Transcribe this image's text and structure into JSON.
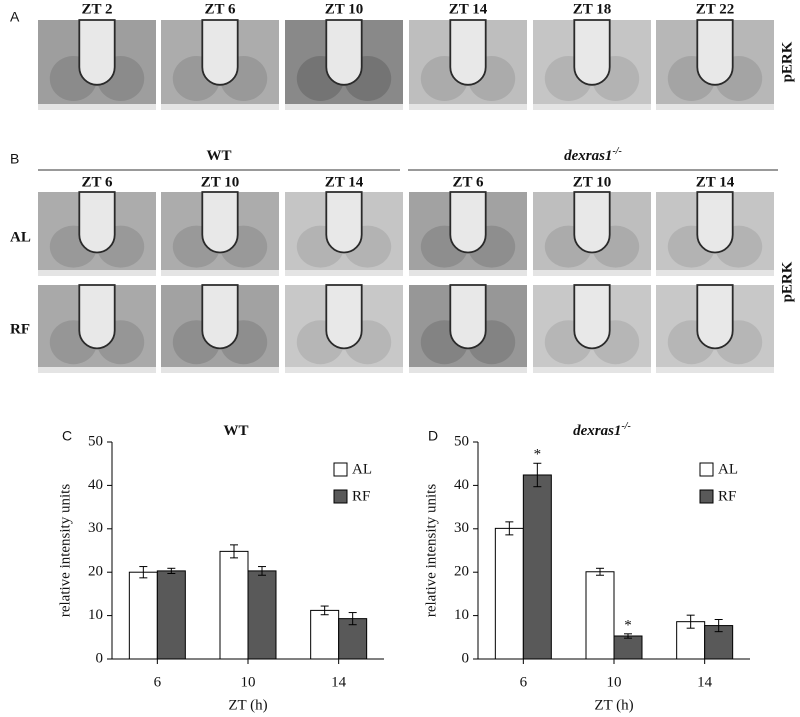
{
  "panel_a": {
    "label": "A",
    "columns": [
      "ZT 2",
      "ZT 6",
      "ZT 10",
      "ZT 14",
      "ZT 18",
      "ZT 22"
    ],
    "stain": "pERK"
  },
  "panel_b": {
    "label": "B",
    "groups": [
      {
        "name": "WT",
        "columns": [
          "ZT 6",
          "ZT 10",
          "ZT 14"
        ]
      },
      {
        "name": "dexras1",
        "superscript": "-/-",
        "columns": [
          "ZT 6",
          "ZT 10",
          "ZT 14"
        ]
      }
    ],
    "rows": [
      "AL",
      "RF"
    ],
    "stain": "pERK"
  },
  "chart_data": [
    {
      "type": "bar",
      "panel_label": "C",
      "title": "WT",
      "xlabel": "ZT (h)",
      "ylabel": "relative intensity units",
      "categories": [
        "6",
        "10",
        "14"
      ],
      "series": [
        {
          "name": "AL",
          "color": "#ffffff",
          "values": [
            20,
            24.8,
            11.2
          ],
          "errors": [
            1.3,
            1.5,
            1
          ]
        },
        {
          "name": "RF",
          "color": "#595959",
          "values": [
            20.3,
            20.3,
            9.3
          ],
          "errors": [
            0.6,
            1,
            1.4
          ]
        }
      ],
      "ylim": [
        0,
        50
      ],
      "yticks": [
        0,
        10,
        20,
        30,
        40,
        50
      ],
      "grid": false,
      "legend": "upper right"
    },
    {
      "type": "bar",
      "panel_label": "D",
      "title": "dexras1",
      "title_superscript": "-/-",
      "xlabel": "ZT (h)",
      "ylabel": "relative intensity units",
      "categories": [
        "6",
        "10",
        "14"
      ],
      "series": [
        {
          "name": "AL",
          "color": "#ffffff",
          "values": [
            30.1,
            20.1,
            8.6
          ],
          "errors": [
            1.5,
            0.8,
            1.5
          ]
        },
        {
          "name": "RF",
          "color": "#595959",
          "values": [
            42.4,
            5.3,
            7.7
          ],
          "errors": [
            2.7,
            0.5,
            1.4
          ],
          "markers": [
            "*",
            "*",
            null
          ]
        }
      ],
      "ylim": [
        0,
        50
      ],
      "yticks": [
        0,
        10,
        20,
        30,
        40,
        50
      ],
      "grid": false,
      "legend": "upper right"
    }
  ]
}
